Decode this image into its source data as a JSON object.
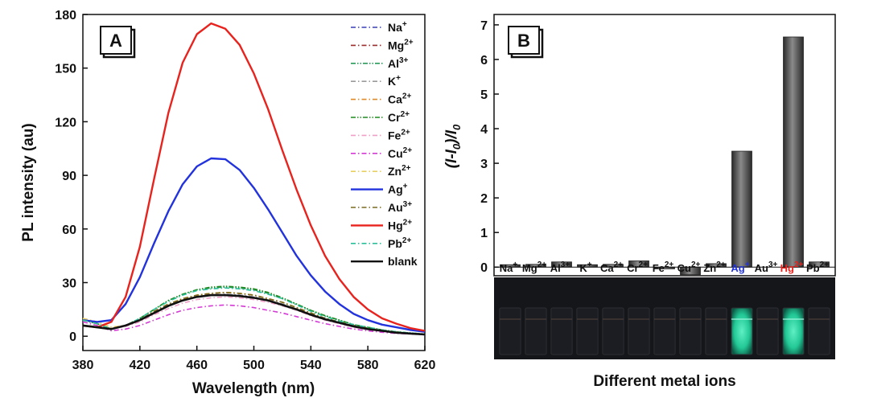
{
  "chart_data": [
    {
      "panel": "A",
      "type": "line",
      "xlabel": "Wavelength (nm)",
      "ylabel": "PL intensity (au)",
      "xlim": [
        380,
        620
      ],
      "ylim": [
        -8,
        180
      ],
      "xticks": [
        380,
        420,
        460,
        500,
        540,
        580,
        620
      ],
      "yticks": [
        0,
        30,
        60,
        90,
        120,
        150,
        180
      ],
      "legend_position": "top-right",
      "x": [
        380,
        390,
        400,
        410,
        420,
        430,
        440,
        450,
        460,
        470,
        480,
        490,
        500,
        510,
        520,
        530,
        540,
        550,
        560,
        570,
        580,
        590,
        600,
        610,
        620
      ],
      "series": [
        {
          "name": "Na",
          "charge": "+",
          "color": "#3a3fb5",
          "dash": "dashdot",
          "values": [
            9,
            7,
            4,
            6,
            9,
            13,
            17,
            20,
            22,
            23,
            23.5,
            23,
            22,
            20,
            18,
            15,
            12,
            9.5,
            7.5,
            5.5,
            4,
            3,
            2,
            1.5,
            1
          ]
        },
        {
          "name": "Mg",
          "charge": "2+",
          "color": "#9b2d2d",
          "dash": "dashdot",
          "values": [
            9,
            7,
            4,
            6,
            9,
            14,
            18,
            21,
            23,
            24,
            24.5,
            24,
            23,
            21,
            19,
            16,
            13,
            10,
            8,
            6,
            4.5,
            3,
            2.2,
            1.5,
            1
          ]
        },
        {
          "name": "Al",
          "charge": "3+",
          "color": "#2a9a5a",
          "dash": "dashdotdot",
          "values": [
            9,
            7,
            4,
            6,
            10,
            15,
            20,
            23.5,
            26,
            27,
            27.5,
            27,
            26,
            24,
            21,
            18,
            14.5,
            11.5,
            9,
            6.5,
            5,
            3.5,
            2.5,
            1.8,
            1.2
          ]
        },
        {
          "name": "K",
          "charge": "+",
          "color": "#9a9a9a",
          "dash": "dashdot",
          "values": [
            9,
            7,
            4,
            6,
            9,
            13,
            17,
            20,
            22,
            23,
            23.5,
            23,
            22,
            20,
            18,
            15,
            12,
            9.5,
            7.5,
            5.5,
            4,
            3,
            2,
            1.5,
            1
          ]
        },
        {
          "name": "Ca",
          "charge": "2+",
          "color": "#e08a2a",
          "dash": "dashdot",
          "values": [
            10,
            8,
            5,
            6,
            9,
            14,
            18,
            21,
            23,
            24,
            24.5,
            24,
            23,
            21,
            19,
            16,
            13,
            10,
            8,
            6,
            4.5,
            3.2,
            2.3,
            1.6,
            1
          ]
        },
        {
          "name": "Cr",
          "charge": "2+",
          "color": "#1f8a1f",
          "dash": "dashdotdot",
          "values": [
            9,
            7,
            4,
            6,
            10,
            15,
            20,
            23.5,
            26,
            27.5,
            28,
            27.5,
            26.5,
            24.5,
            21.5,
            18,
            14.5,
            11.5,
            9,
            6.5,
            5,
            3.5,
            2.5,
            1.8,
            1.2
          ]
        },
        {
          "name": "Fe",
          "charge": "2+",
          "color": "#f0a0c8",
          "dash": "dashdot",
          "values": [
            9,
            7,
            4,
            5.5,
            8,
            12,
            15.5,
            18.5,
            20.5,
            21.5,
            22,
            21.5,
            20.5,
            19,
            17,
            14.5,
            11.5,
            9,
            7,
            5,
            3.8,
            2.8,
            2,
            1.4,
            1
          ]
        },
        {
          "name": "Cu",
          "charge": "2+",
          "color": "#d63ad6",
          "dash": "dashdot",
          "values": [
            8,
            6,
            3,
            4,
            6,
            9,
            12,
            14.5,
            16,
            17,
            17.5,
            17,
            16,
            14.5,
            13,
            11,
            9,
            7,
            5.5,
            4,
            3,
            2.2,
            1.6,
            1.2,
            0.8
          ]
        },
        {
          "name": "Zn",
          "charge": "2+",
          "color": "#e8d060",
          "dash": "dashdot",
          "values": [
            10,
            8,
            5,
            6,
            9,
            14,
            18,
            21,
            23,
            24,
            24.5,
            24,
            23,
            21,
            19,
            16,
            13,
            10,
            8,
            6,
            4.5,
            3.2,
            2.3,
            1.6,
            1
          ]
        },
        {
          "name": "Ag",
          "charge": "+",
          "color": "#2233dd",
          "dash": "solid",
          "values": [
            9,
            8,
            9,
            18,
            33,
            52,
            70,
            85,
            95,
            99.5,
            99,
            93,
            83,
            71,
            58,
            45,
            34,
            25,
            18,
            12.5,
            9,
            6.5,
            5,
            3.5,
            2.5
          ]
        },
        {
          "name": "Au",
          "charge": "3+",
          "color": "#7a6a20",
          "dash": "dashdot",
          "values": [
            9,
            7,
            4,
            6,
            9,
            14,
            18,
            21,
            23,
            24,
            24.5,
            24,
            23,
            21,
            19,
            16,
            13,
            10,
            8,
            6,
            4.5,
            3.2,
            2.3,
            1.6,
            1
          ]
        },
        {
          "name": "Hg",
          "charge": "2+",
          "color": "#e8231e",
          "dash": "solid",
          "values": [
            6,
            5,
            8,
            22,
            50,
            88,
            125,
            153,
            169,
            175,
            172,
            163,
            147,
            127,
            104,
            82,
            62,
            45,
            32,
            22,
            15,
            10,
            7,
            4.5,
            3
          ]
        },
        {
          "name": "Pb",
          "charge": "2+",
          "color": "#2abf9a",
          "dash": "dashdot",
          "values": [
            9,
            7,
            4,
            6,
            10,
            15,
            19.5,
            23,
            25.5,
            26.5,
            27,
            26.5,
            25.5,
            23.5,
            21,
            17.5,
            14,
            11,
            8.5,
            6.5,
            5,
            3.5,
            2.5,
            1.8,
            1.2
          ]
        },
        {
          "name": "blank",
          "charge": "",
          "color": "#111111",
          "dash": "solid",
          "values": [
            6,
            5,
            4,
            6,
            9,
            13,
            17,
            20,
            22,
            23,
            23,
            22.5,
            21.5,
            20,
            17.5,
            15,
            12,
            9.5,
            7.5,
            5.5,
            4,
            3,
            2,
            1.5,
            1
          ]
        }
      ]
    },
    {
      "panel": "B",
      "type": "bar",
      "xlabel": "Different metal ions",
      "ylabel": "(I-I0)/I0",
      "ylim": [
        -0.25,
        7.3
      ],
      "yticks": [
        0,
        1,
        2,
        3,
        4,
        5,
        6,
        7
      ],
      "categories": [
        {
          "name": "Na",
          "charge": "+",
          "color": "#111111"
        },
        {
          "name": "Mg",
          "charge": "2+",
          "color": "#111111"
        },
        {
          "name": "Al",
          "charge": "3+",
          "color": "#111111"
        },
        {
          "name": "K",
          "charge": "+",
          "color": "#111111"
        },
        {
          "name": "Ca",
          "charge": "2+",
          "color": "#111111"
        },
        {
          "name": "Cr",
          "charge": "2+",
          "color": "#111111"
        },
        {
          "name": "Fe",
          "charge": "2+",
          "color": "#111111"
        },
        {
          "name": "Cu",
          "charge": "2+",
          "color": "#111111"
        },
        {
          "name": "Zn",
          "charge": "2+",
          "color": "#111111"
        },
        {
          "name": "Ag",
          "charge": "+",
          "color": "#2233dd"
        },
        {
          "name": "Au",
          "charge": "3+",
          "color": "#111111"
        },
        {
          "name": "Hg",
          "charge": "2+",
          "color": "#e8231e"
        },
        {
          "name": "Pb",
          "charge": "2+",
          "color": "#111111"
        }
      ],
      "values": [
        0.07,
        0.08,
        0.15,
        0.07,
        0.08,
        0.18,
        -0.05,
        -0.22,
        0.1,
        3.35,
        0.0,
        6.65,
        0.15
      ],
      "bar_color": "#555555"
    }
  ],
  "panels": {
    "a_label": "A",
    "b_label": "B"
  },
  "photo": {
    "background": "#15161a",
    "glow_color": "#29d9a8",
    "glowing_vials": [
      "Ag",
      "Hg"
    ]
  }
}
